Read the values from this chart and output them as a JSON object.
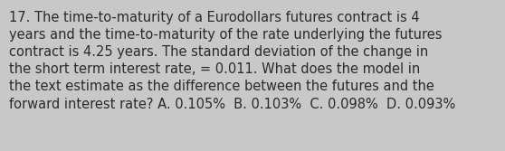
{
  "text": "17. The time-to-maturity of a Eurodollars futures contract is 4\nyears and the time-to-maturity of the rate underlying the futures\ncontract is 4.25 years. The standard deviation of the change in\nthe short term interest rate, = 0.011. What does the model in\nthe text estimate as the difference between the futures and the\nforward interest rate? A. 0.105%  B. 0.103%  C. 0.098%  D. 0.093%",
  "background_color": "#c8c8c8",
  "text_color": "#2a2a2a",
  "font_size": 10.5,
  "fig_width": 5.58,
  "fig_height": 1.67,
  "dpi": 100
}
